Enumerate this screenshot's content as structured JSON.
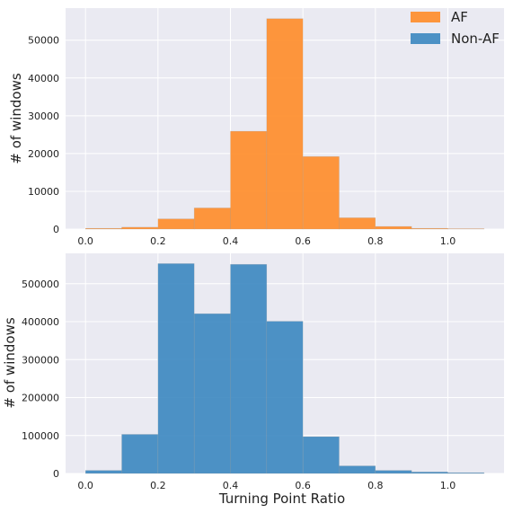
{
  "chart_data": [
    {
      "type": "bar",
      "histogram": true,
      "bin_edges": [
        0.0,
        0.1,
        0.2,
        0.3,
        0.4,
        0.5,
        0.6,
        0.7,
        0.8,
        0.9,
        1.0,
        1.1
      ],
      "series": [
        {
          "name": "AF",
          "values": [
            200,
            500,
            2700,
            5600,
            25900,
            55700,
            19200,
            3000,
            700,
            200,
            100
          ],
          "color": "#ff8c28"
        }
      ],
      "xlabel": "",
      "ylabel": "# of windows",
      "xlim": [
        -0.055,
        1.155
      ],
      "ylim": [
        0,
        58500
      ],
      "xticks": [
        0.0,
        0.2,
        0.4,
        0.6,
        0.8,
        1.0
      ],
      "xtick_labels": [
        "0.0",
        "0.2",
        "0.4",
        "0.6",
        "0.8",
        "1.0"
      ],
      "yticks": [
        0,
        10000,
        20000,
        30000,
        40000,
        50000
      ],
      "ytick_labels": [
        "0",
        "10000",
        "20000",
        "30000",
        "40000",
        "50000"
      ],
      "grid": true,
      "legend": {
        "position": "top-right",
        "entries": [
          {
            "label": "AF",
            "color": "#ff8c28"
          },
          {
            "label": "Non-AF",
            "color": "#3b87c0"
          }
        ]
      }
    },
    {
      "type": "bar",
      "histogram": true,
      "bin_edges": [
        0.0,
        0.1,
        0.2,
        0.3,
        0.4,
        0.5,
        0.6,
        0.7,
        0.8,
        0.9,
        1.0,
        1.1
      ],
      "series": [
        {
          "name": "Non-AF",
          "values": [
            8000,
            103000,
            553000,
            421000,
            551000,
            401000,
            97000,
            20000,
            8000,
            4000,
            2000
          ],
          "color": "#3b87c0"
        }
      ],
      "xlabel": "Turning Point Ratio",
      "ylabel": "# of windows",
      "xlim": [
        -0.055,
        1.155
      ],
      "ylim": [
        0,
        580000
      ],
      "xticks": [
        0.0,
        0.2,
        0.4,
        0.6,
        0.8,
        1.0
      ],
      "xtick_labels": [
        "0.0",
        "0.2",
        "0.4",
        "0.6",
        "0.8",
        "1.0"
      ],
      "yticks": [
        0,
        100000,
        200000,
        300000,
        400000,
        500000
      ],
      "ytick_labels": [
        "0",
        "100000",
        "200000",
        "300000",
        "400000",
        "500000"
      ],
      "grid": true
    }
  ]
}
